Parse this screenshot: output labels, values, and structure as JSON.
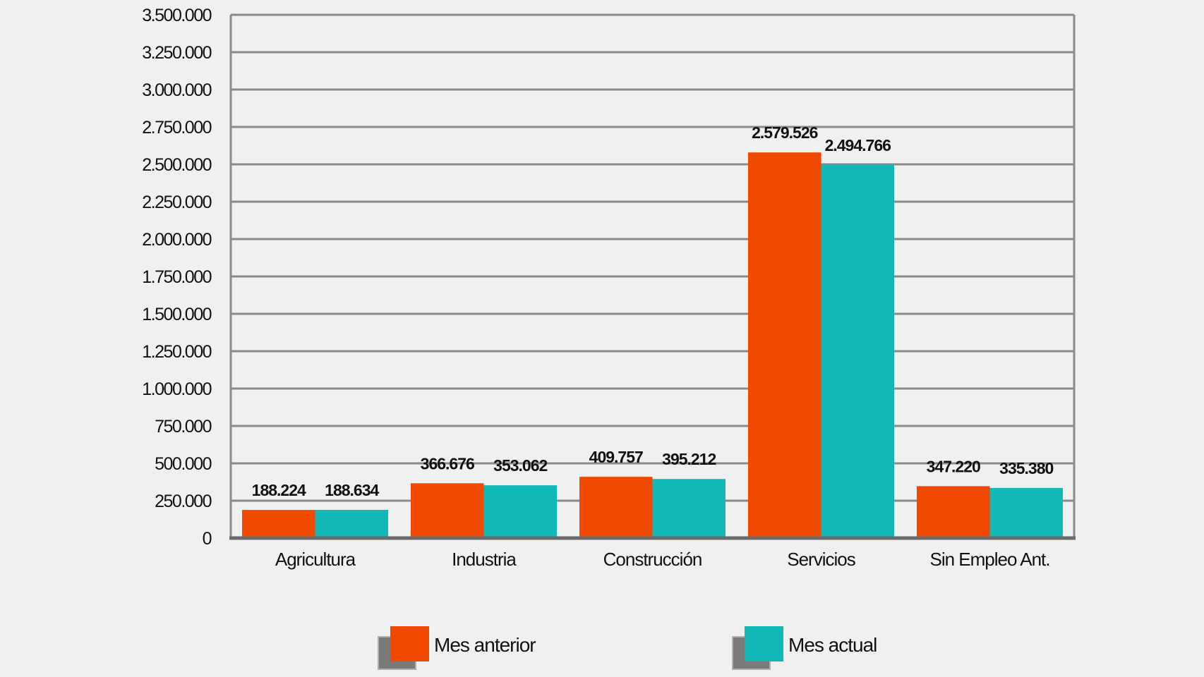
{
  "chart_data": {
    "type": "bar",
    "categories": [
      "Agricultura",
      "Industria",
      "Construcción",
      "Servicios",
      "Sin Empleo Ant."
    ],
    "series": [
      {
        "name": "Mes anterior",
        "color": "#F04A00",
        "values": [
          188224,
          366676,
          409757,
          2579526,
          347220
        ],
        "labels": [
          "188.224",
          "366.676",
          "409.757",
          "2.579.526",
          "347.220"
        ]
      },
      {
        "name": "Mes actual",
        "color": "#10B8B8",
        "values": [
          188634,
          353062,
          395212,
          2494766,
          335380
        ],
        "labels": [
          "188.634",
          "353.062",
          "395.212",
          "2.494.766",
          "335.380"
        ]
      }
    ],
    "ylim": [
      0,
      3500000
    ],
    "yticks": [
      0,
      250000,
      500000,
      750000,
      1000000,
      1250000,
      1500000,
      1750000,
      2000000,
      2250000,
      2500000,
      2750000,
      3000000,
      3250000,
      3500000
    ],
    "ytick_labels": [
      "0",
      "250.000",
      "500.000",
      "750.000",
      "1.000.000",
      "1.250.000",
      "1.500.000",
      "1.750.000",
      "2.000.000",
      "2.250.000",
      "2.500.000",
      "2.750.000",
      "3.000.000",
      "3.250.000",
      "3.500.000"
    ],
    "grid": true,
    "legend": "bottom",
    "background": "#F0F0F0",
    "gridline_color": "#8A8A8A"
  }
}
